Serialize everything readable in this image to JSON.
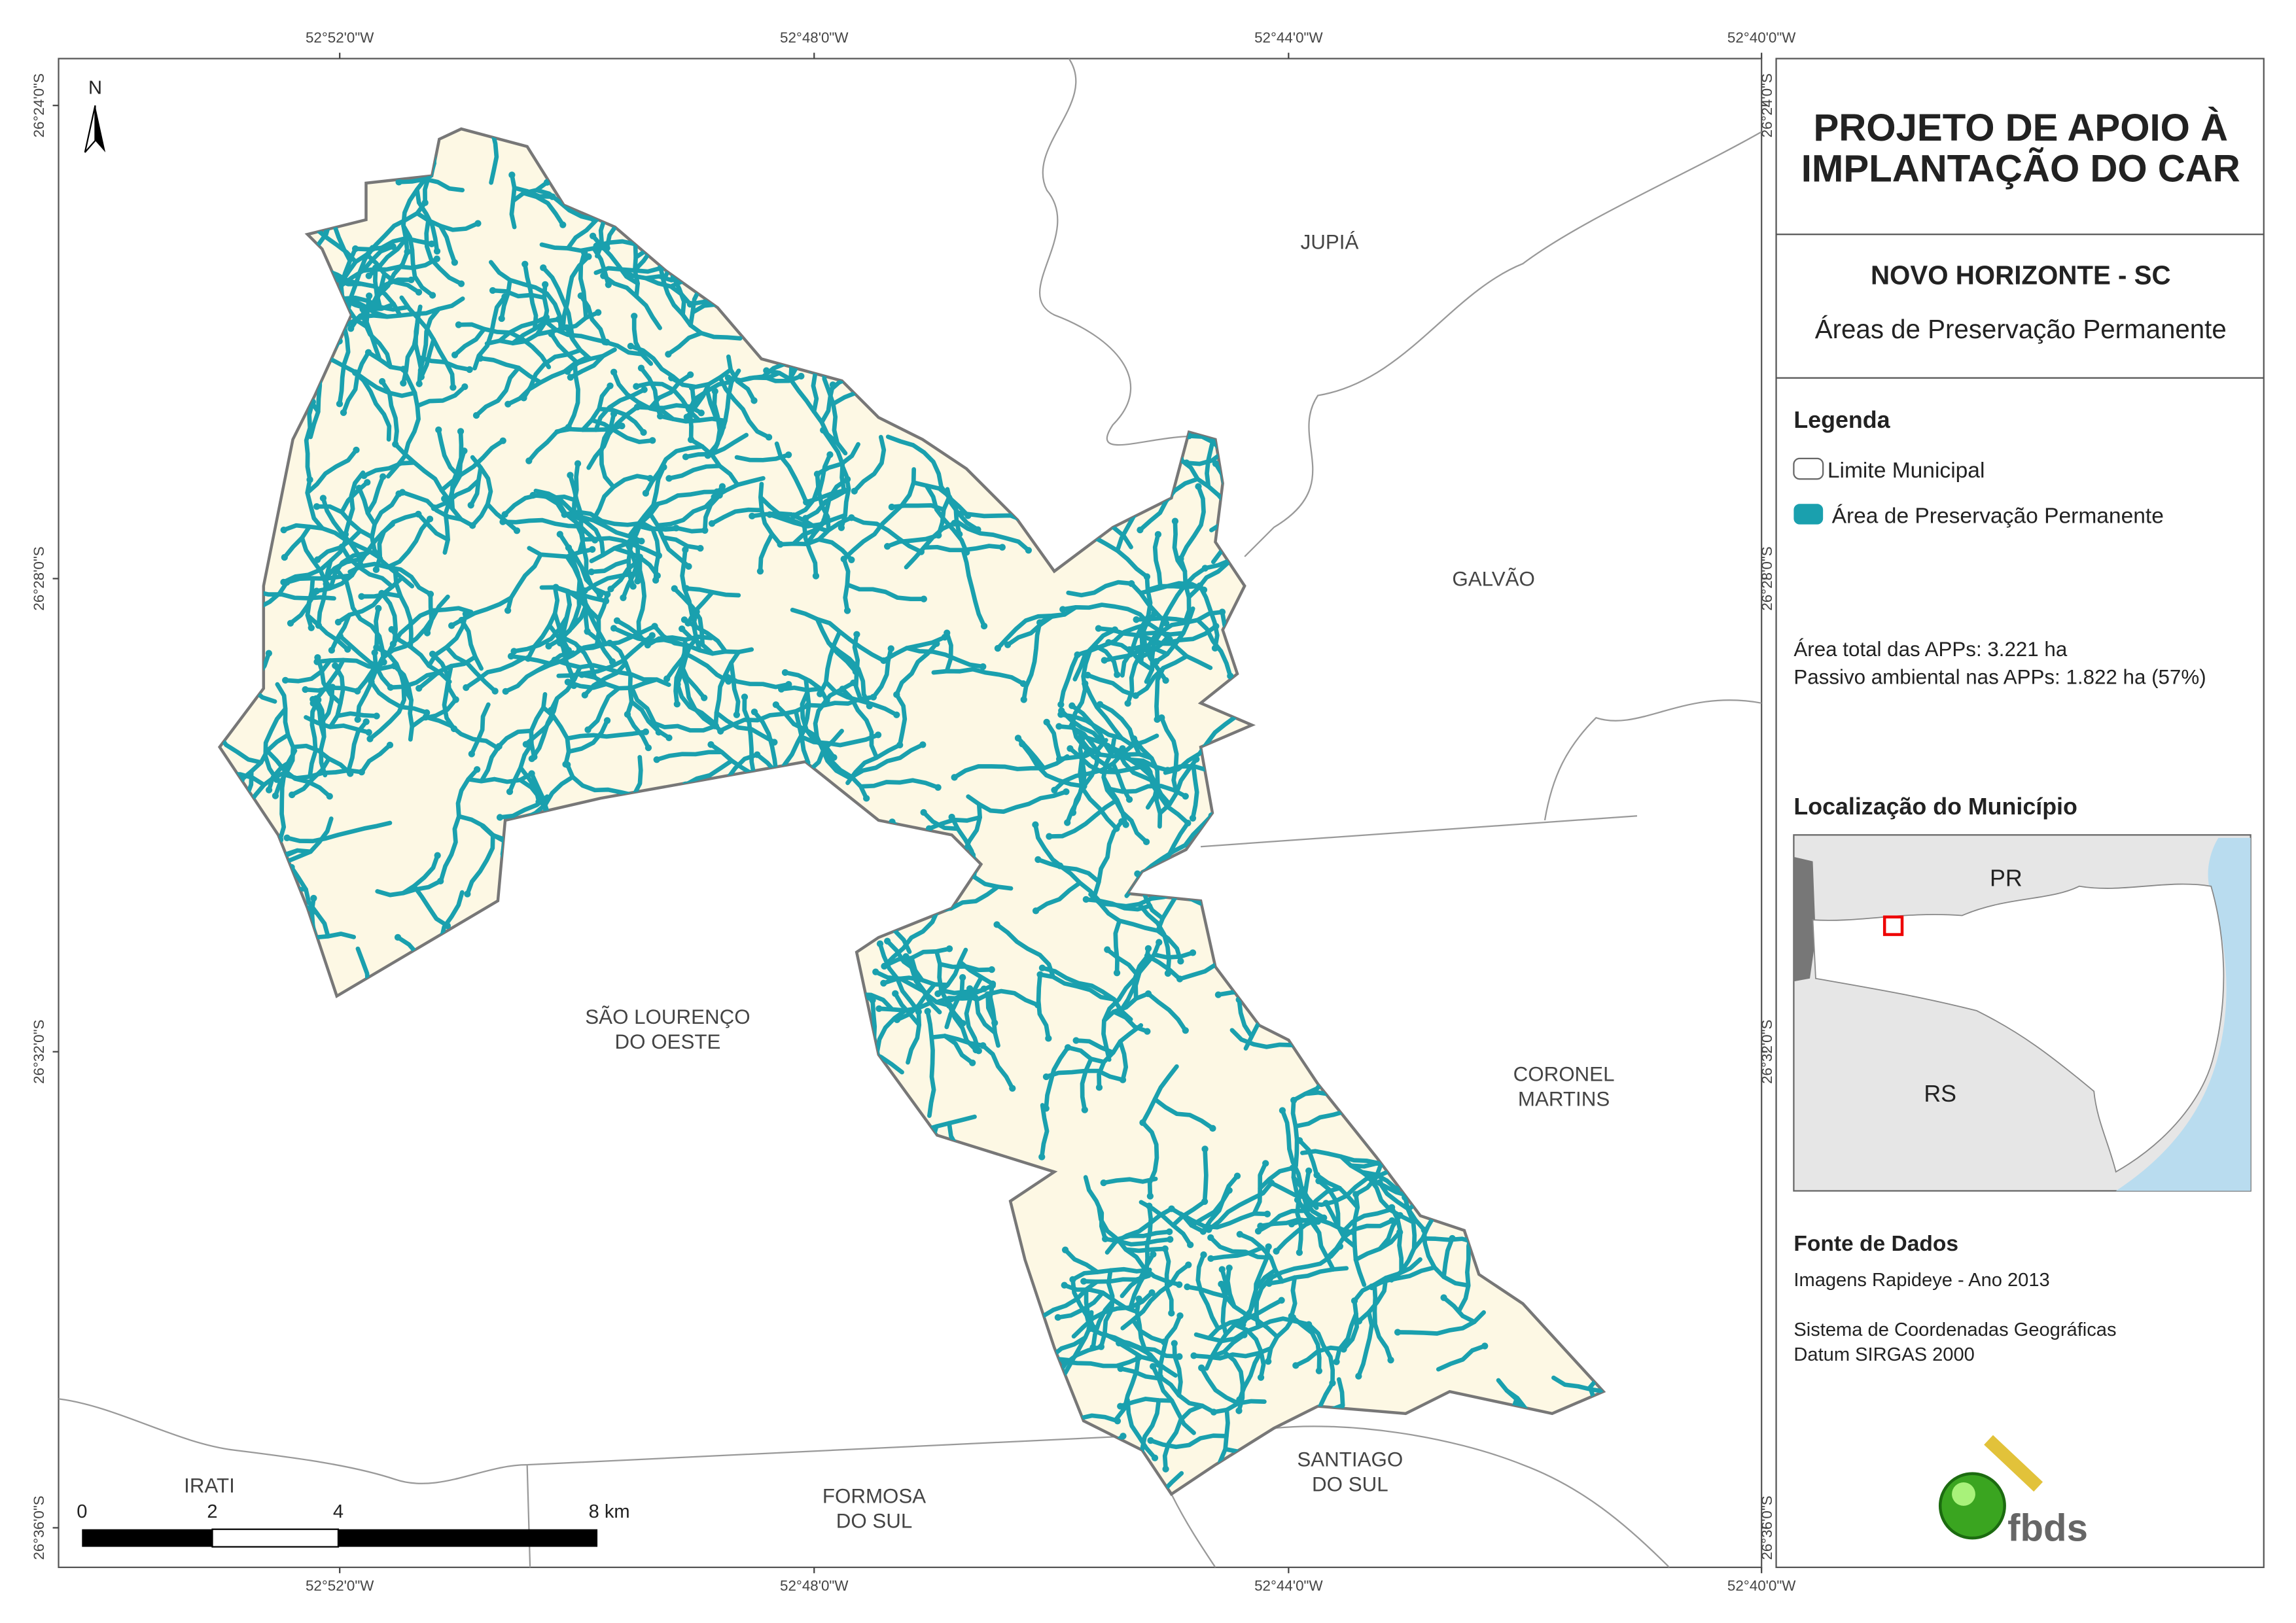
{
  "header": {
    "title_lines": [
      "PROJETO DE APOIO À",
      "IMPLANTAÇÃO DO CAR"
    ],
    "municipality": "NOVO HORIZONTE - SC",
    "subtitle": "Áreas de Preservação Permanente"
  },
  "legend": {
    "title": "Legenda",
    "items": [
      "Limite Municipal",
      "Área de Preservação Permanente"
    ]
  },
  "stats": [
    "Área total das APPs: 3.221 ha",
    "Passivo ambiental nas APPs: 1.822 ha (57%)"
  ],
  "location": {
    "title": "Localização do Município",
    "labels": [
      "PR",
      "RS"
    ]
  },
  "sources": {
    "title": "Fonte de Dados",
    "lines": [
      "Imagens Rapideye - Ano 2013",
      "Sistema de Coordenadas Geográficas",
      "Datum SIRGAS 2000"
    ]
  },
  "logo": "fbds",
  "map": {
    "north": "N",
    "x_ticks": [
      "52°52'0\"W",
      "52°48'0\"W",
      "52°44'0\"W",
      "52°40'0\"W"
    ],
    "y_ticks": [
      "26°24'0\"S",
      "26°28'0\"S",
      "26°32'0\"S",
      "26°36'0\"S"
    ],
    "places": [
      {
        "lines": [
          "JUPIÁ"
        ]
      },
      {
        "lines": [
          "GALVÃO"
        ]
      },
      {
        "lines": [
          "SÃO LOURENÇO",
          "DO OESTE"
        ]
      },
      {
        "lines": [
          "CORONEL",
          "MARTINS"
        ]
      },
      {
        "lines": [
          "SANTIAGO",
          "DO SUL"
        ]
      },
      {
        "lines": [
          "FORMOSA",
          "DO SUL"
        ]
      },
      {
        "lines": [
          "IRATI"
        ]
      }
    ],
    "scale_bar": [
      "0",
      "2",
      "4",
      "8 km"
    ]
  }
}
